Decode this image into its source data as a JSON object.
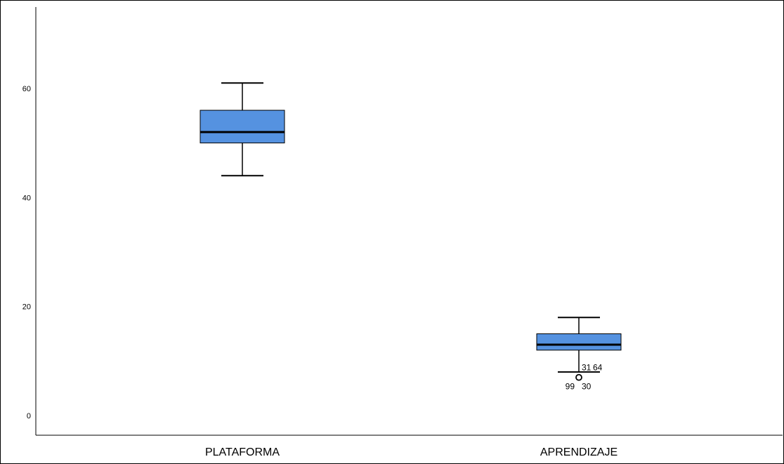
{
  "chart_data": {
    "type": "boxplot",
    "title": "",
    "xlabel": "",
    "ylabel": "",
    "ylim": [
      0,
      75
    ],
    "yticks": [
      0,
      20,
      40,
      60
    ],
    "grid": false,
    "box_color": "#5592e0",
    "series": [
      {
        "category": "PLATAFORMA",
        "whisker_low": 44,
        "q1": 50,
        "median": 52,
        "q3": 56,
        "whisker_high": 61,
        "outliers": []
      },
      {
        "category": "APRENDIZAJE",
        "whisker_low": 8,
        "q1": 12,
        "median": 13,
        "q3": 15,
        "whisker_high": 18,
        "outliers": [
          {
            "value": 7,
            "labels": [
              "31",
              "64",
              "99",
              "30"
            ]
          }
        ]
      }
    ]
  }
}
